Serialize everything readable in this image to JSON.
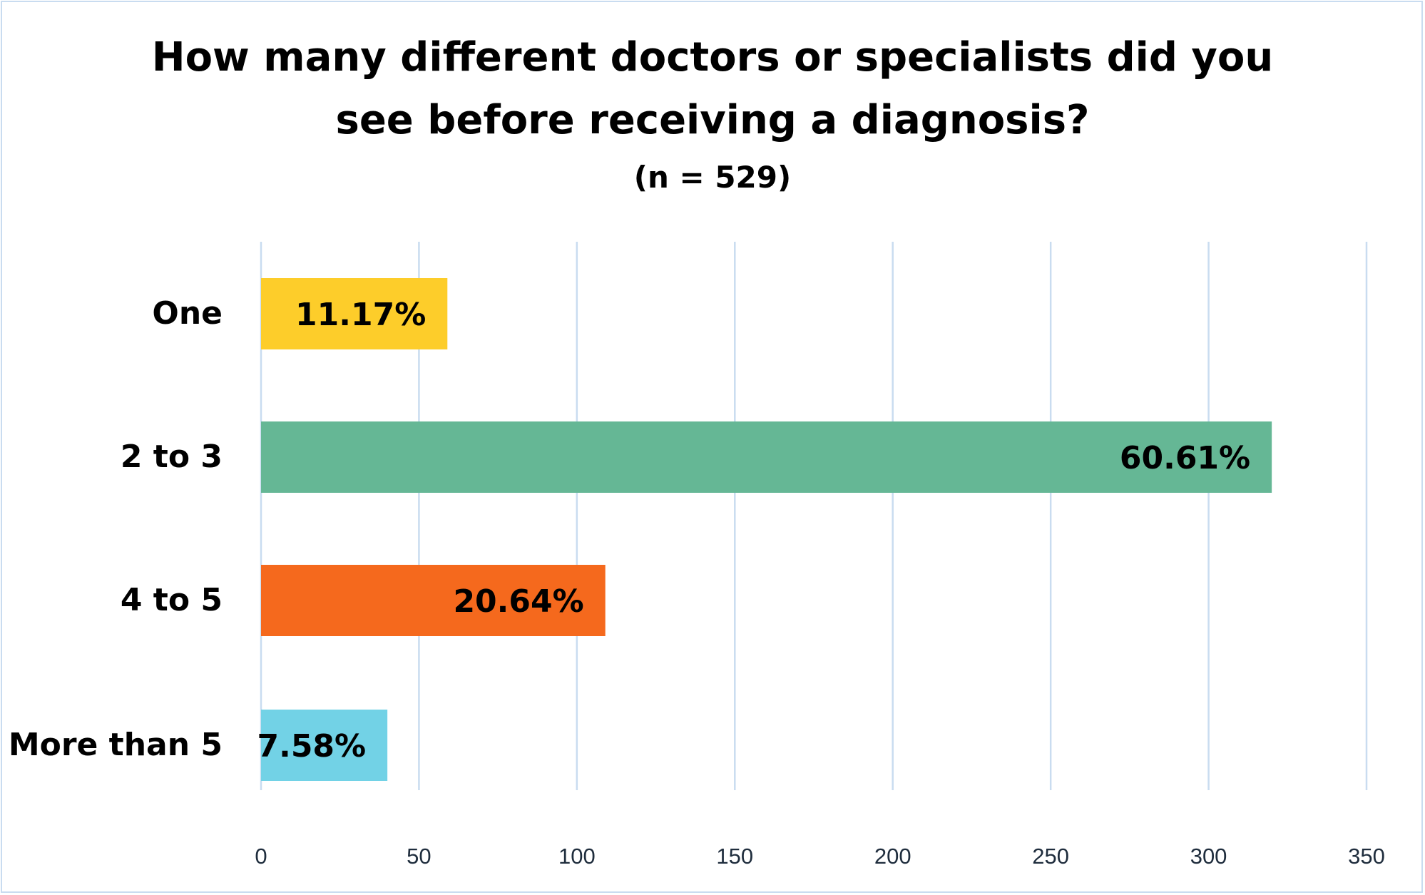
{
  "chart_data": {
    "type": "bar",
    "orientation": "horizontal",
    "title_line1": "How many different doctors or specialists did you",
    "title_line2": "see before receiving a diagnosis?",
    "subtitle": "(n = 529)",
    "categories": [
      "One",
      "2 to 3",
      "4 to 5",
      "More than 5"
    ],
    "values": [
      59,
      320,
      109,
      40
    ],
    "data_labels": [
      "11.17%",
      "60.61%",
      "20.64%",
      "7.58%"
    ],
    "colors": [
      "#fdcd2a",
      "#65b795",
      "#f5691d",
      "#72d2e6"
    ],
    "xlim": [
      0,
      350
    ],
    "xticks": [
      "0",
      "50",
      "100",
      "150",
      "200",
      "250",
      "300",
      "350"
    ],
    "tick_values": [
      0,
      50,
      100,
      150,
      200,
      250,
      300,
      350
    ],
    "grid": true,
    "grid_color": "#c9dcf0",
    "legend": "none"
  }
}
